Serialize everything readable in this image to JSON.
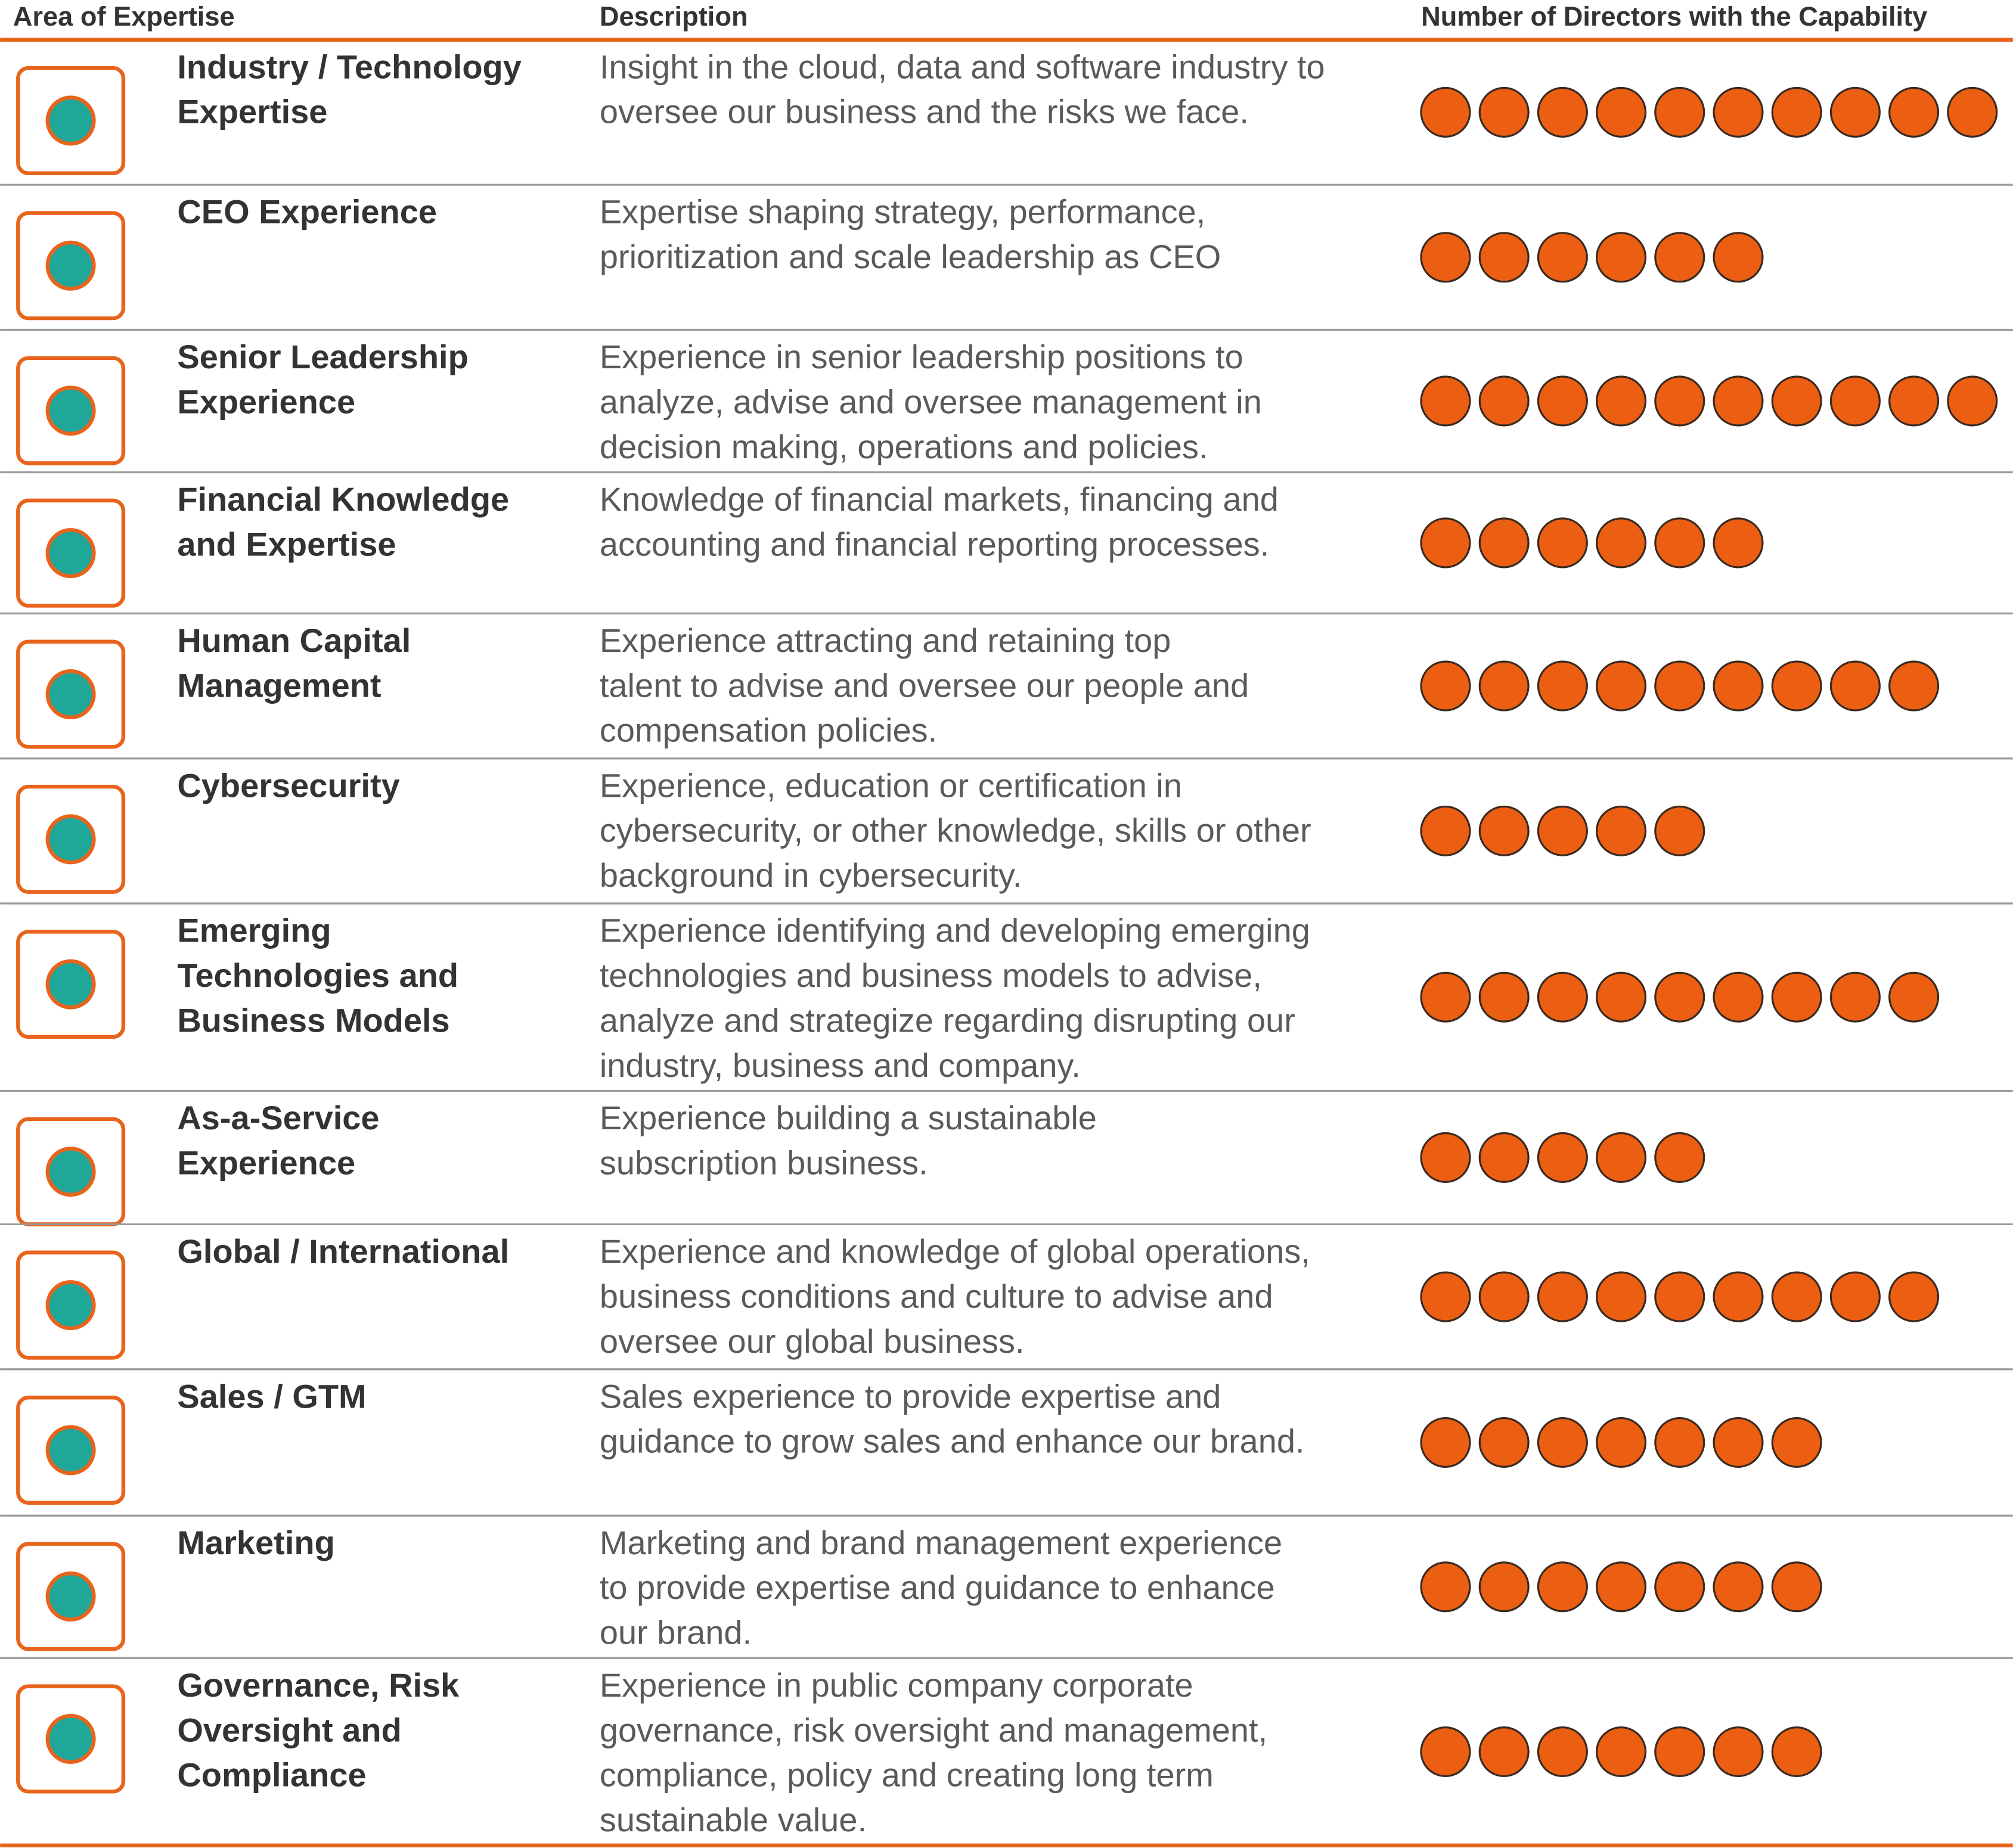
{
  "columns": [
    "Area of Expertise",
    "Description",
    "Number of Directors with the Capability"
  ],
  "rows": [
    {
      "area": [
        "Industry / Technology",
        "Expertise"
      ],
      "description": [
        "Insight in the cloud, data and software industry to",
        "oversee our business and the risks we face."
      ],
      "directors": 10
    },
    {
      "area": [
        "CEO Experience"
      ],
      "description": [
        "Expertise shaping strategy, performance,",
        "prioritization and scale leadership as CEO"
      ],
      "directors": 6
    },
    {
      "area": [
        "Senior Leadership",
        "Experience"
      ],
      "description": [
        "Experience in senior leadership positions to",
        "analyze, advise and oversee management in",
        "decision making, operations and policies."
      ],
      "directors": 10
    },
    {
      "area": [
        "Financial Knowledge",
        "and Expertise"
      ],
      "description": [
        "Knowledge of financial markets, financing and",
        "accounting and financial reporting processes."
      ],
      "directors": 6
    },
    {
      "area": [
        "Human Capital",
        "Management"
      ],
      "description": [
        "Experience attracting and retaining top",
        "talent to advise and oversee our people and",
        "compensation policies."
      ],
      "directors": 9
    },
    {
      "area": [
        "Cybersecurity"
      ],
      "description": [
        "Experience, education or certification in",
        "cybersecurity, or other knowledge, skills or other",
        "background in cybersecurity."
      ],
      "directors": 5
    },
    {
      "area": [
        "Emerging",
        "Technologies and",
        "Business Models"
      ],
      "description": [
        "Experience identifying and developing emerging",
        "technologies and business models to advise,",
        "analyze and strategize regarding disrupting our",
        "industry, business and company."
      ],
      "directors": 9
    },
    {
      "area": [
        "As-a-Service",
        "Experience"
      ],
      "description": [
        "Experience building a sustainable",
        "subscription business."
      ],
      "directors": 5
    },
    {
      "area": [
        "Global / International"
      ],
      "description": [
        "Experience and knowledge of global operations,",
        "business conditions and culture to advise and",
        "oversee our global business."
      ],
      "directors": 9
    },
    {
      "area": [
        "Sales / GTM"
      ],
      "description": [
        "Sales experience to provide expertise and",
        "guidance to grow sales and enhance our brand."
      ],
      "directors": 7
    },
    {
      "area": [
        "Marketing"
      ],
      "description": [
        "Marketing and brand management experience",
        "to provide expertise and guidance to enhance",
        "our brand."
      ],
      "directors": 7
    },
    {
      "area": [
        "Governance, Risk",
        "Oversight and",
        "Compliance"
      ],
      "description": [
        "Experience in public company corporate",
        "governance, risk oversight and management,",
        "compliance, policy and creating long term",
        "sustainable value."
      ],
      "directors": 7
    }
  ]
}
